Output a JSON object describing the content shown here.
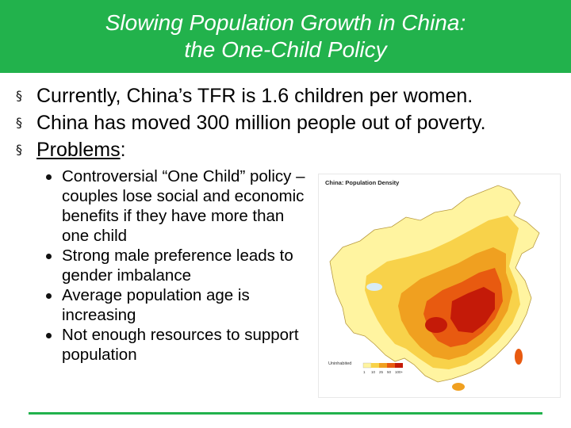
{
  "title": {
    "line1": "Slowing Population Growth in China:",
    "line2": "the One-Child Policy"
  },
  "bullets": [
    {
      "text": "Currently, China’s TFR is 1.6 children per women."
    },
    {
      "text": "China has moved 300 million people out of poverty."
    },
    {
      "text": "Problems",
      "suffix": ":"
    }
  ],
  "sub_bullets": [
    "Controversial “One Child” policy – couples lose social and economic benefits if they have more than one child",
    "Strong male preference leads to gender imbalance",
    "Average population age is increasing",
    "Not enough resources to support population"
  ],
  "map": {
    "title": "China: Population Density",
    "legend_label": "Uninhabited",
    "legend_values": [
      "1",
      "10",
      "25",
      "50",
      "100+"
    ],
    "colors": {
      "sparse": "#fff4a0",
      "light": "#f8d24a",
      "medium": "#f0a020",
      "dense": "#e85a10",
      "very_dense": "#c41a08",
      "water": "#d8ecf6"
    }
  },
  "theme": {
    "accent": "#22b24c",
    "title_text": "#ffffff"
  }
}
